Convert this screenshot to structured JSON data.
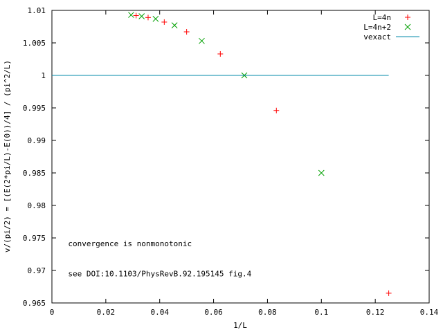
{
  "chart_data": {
    "type": "scatter",
    "title": "",
    "xlabel": "1/L",
    "ylabel": "v/(pi/2) = [(E(2*pi/L)-E(0))/4] / (pi^2/L)",
    "xlim": [
      0,
      0.14
    ],
    "ylim": [
      0.965,
      1.01
    ],
    "xticks": [
      0,
      0.02,
      0.04,
      0.06,
      0.08,
      0.1,
      0.12,
      0.14
    ],
    "xtick_labels": [
      "0",
      "0.02",
      "0.04",
      "0.06",
      "0.08",
      "0.1",
      "0.12",
      "0.14"
    ],
    "yticks": [
      0.965,
      0.97,
      0.975,
      0.98,
      0.985,
      0.99,
      0.995,
      1,
      1.005,
      1.01
    ],
    "ytick_labels": [
      "0.965",
      "0.97",
      "0.975",
      "0.98",
      "0.985",
      "0.99",
      "0.995",
      "1",
      "1.005",
      "1.01"
    ],
    "grid": false,
    "legend_position": "top-right",
    "series": [
      {
        "name": "L=4n",
        "marker": "plus",
        "color": "#ff0000",
        "x": [
          0.125,
          0.0833,
          0.0625,
          0.05,
          0.0417,
          0.0357,
          0.03125
        ],
        "y": [
          0.9665,
          0.9946,
          1.0033,
          1.0067,
          1.0082,
          1.0089,
          1.0092
        ]
      },
      {
        "name": "L=4n+2",
        "marker": "cross",
        "color": "#00a000",
        "x": [
          0.1,
          0.0714,
          0.0556,
          0.0455,
          0.0385,
          0.0333,
          0.0294
        ],
        "y": [
          0.985,
          1.0,
          1.0053,
          1.0077,
          1.0087,
          1.0091,
          1.0093
        ]
      },
      {
        "name": "vexact",
        "marker": "line",
        "color": "#0088aa",
        "x": [
          0,
          0.125
        ],
        "y": [
          1.0,
          1.0
        ]
      }
    ],
    "annotations": [
      {
        "text": "convergence is nonmonotonic",
        "x": 0.006,
        "y": 0.9737
      },
      {
        "text": "see DOI:10.1103/PhysRevB.92.195145 fig.4",
        "x": 0.006,
        "y": 0.9691
      }
    ]
  }
}
